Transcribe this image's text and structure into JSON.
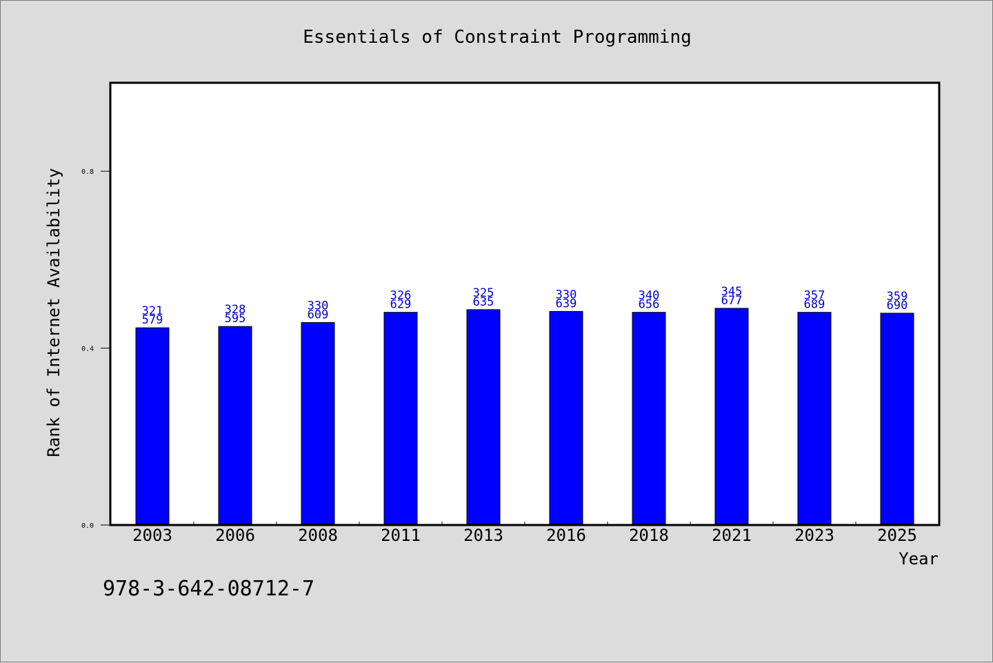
{
  "chart_data": {
    "type": "bar",
    "title": "Essentials of Constraint Programming",
    "xlabel": "Year",
    "ylabel": "Rank of Internet Availability",
    "ylim": [
      0,
      1.0
    ],
    "yticks": [
      0.0,
      0.4,
      0.8
    ],
    "ytick_labels": [
      "0.0",
      "0.4",
      "0.8"
    ],
    "grid": false,
    "bar_color": "#0000ff",
    "label_color": "#0000cc",
    "categories": [
      "2003",
      "2006",
      "2008",
      "2011",
      "2013",
      "2016",
      "2018",
      "2021",
      "2023",
      "2025"
    ],
    "values": [
      0.446,
      0.449,
      0.458,
      0.481,
      0.487,
      0.483,
      0.481,
      0.49,
      0.481,
      0.479
    ],
    "data_labels": [
      [
        "321",
        "579"
      ],
      [
        "328",
        "595"
      ],
      [
        "330",
        "609"
      ],
      [
        "326",
        "629"
      ],
      [
        "325",
        "635"
      ],
      [
        "330",
        "639"
      ],
      [
        "340",
        "656"
      ],
      [
        "345",
        "677"
      ],
      [
        "357",
        "689"
      ],
      [
        "359",
        "690"
      ]
    ]
  },
  "footer": {
    "isbn": "978-3-642-08712-7"
  }
}
